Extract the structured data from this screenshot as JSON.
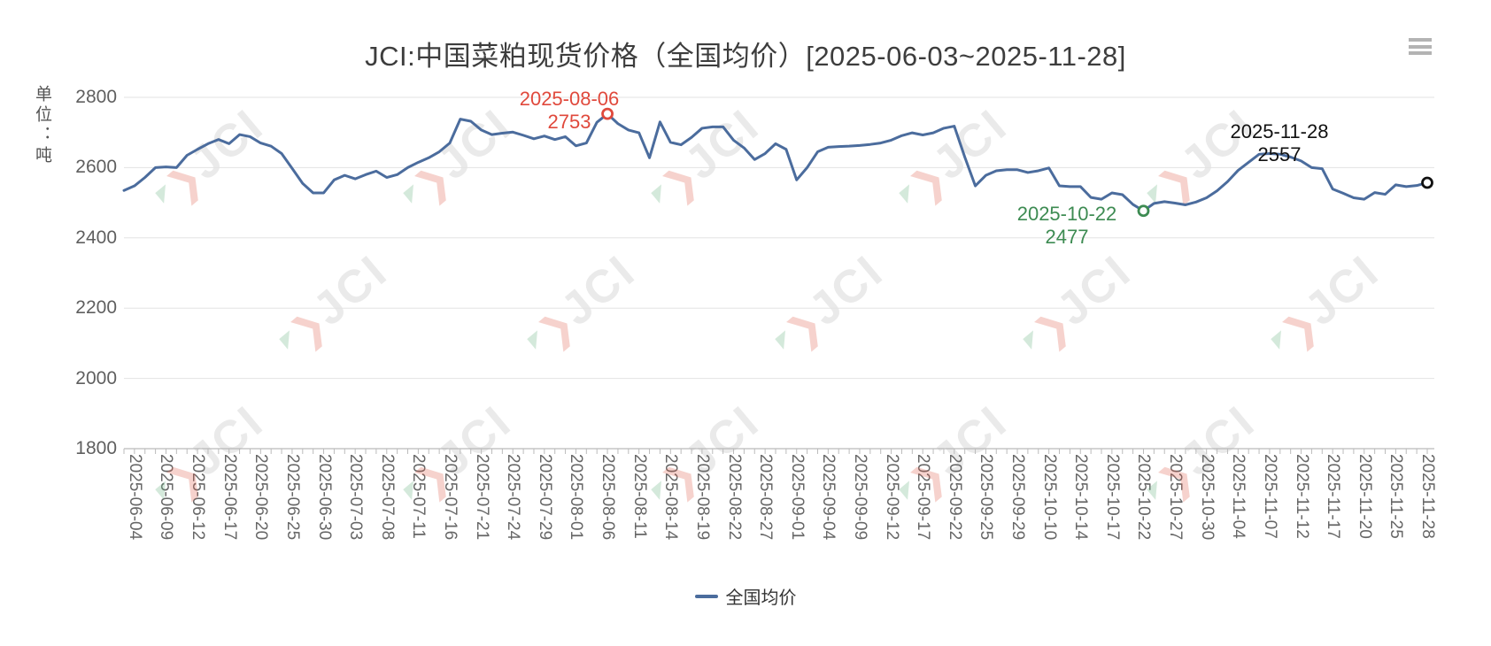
{
  "header": {
    "title": "JCI:中国菜粕现货价格（全国均价）[2025-06-03~2025-11-28]"
  },
  "icons": {
    "menu": "hamburger"
  },
  "y_axis": {
    "unit_label": "单位：吨"
  },
  "legend": {
    "items": [
      {
        "label": "全国均价",
        "color": "#4b6c9d"
      }
    ],
    "position": "bottom"
  },
  "colors": {
    "line": "#4b6c9d",
    "max": "#e0493c",
    "min": "#3d8b52",
    "last": "#111111",
    "grid": "#e3e3e3",
    "axis": "#aaaaaa"
  },
  "watermark": {
    "chevron": "❯",
    "accent": "◤",
    "text": "JCI"
  },
  "chart_data": {
    "type": "line",
    "title": "JCI:中国菜粕现货价格（全国均价）[2025-06-03~2025-11-28]",
    "ylabel": "单位：吨",
    "ylim": [
      1800,
      2800
    ],
    "y_ticks": [
      2800,
      2600,
      2400,
      2200,
      2000,
      1800
    ],
    "grid": true,
    "legend_position": "bottom",
    "x_label_interval": 3,
    "x": [
      "2025-06-03",
      "2025-06-04",
      "2025-06-05",
      "2025-06-06",
      "2025-06-09",
      "2025-06-10",
      "2025-06-11",
      "2025-06-12",
      "2025-06-13",
      "2025-06-16",
      "2025-06-17",
      "2025-06-18",
      "2025-06-19",
      "2025-06-20",
      "2025-06-23",
      "2025-06-24",
      "2025-06-25",
      "2025-06-26",
      "2025-06-27",
      "2025-06-30",
      "2025-07-01",
      "2025-07-02",
      "2025-07-03",
      "2025-07-04",
      "2025-07-07",
      "2025-07-08",
      "2025-07-09",
      "2025-07-10",
      "2025-07-11",
      "2025-07-14",
      "2025-07-15",
      "2025-07-16",
      "2025-07-17",
      "2025-07-18",
      "2025-07-21",
      "2025-07-22",
      "2025-07-23",
      "2025-07-24",
      "2025-07-25",
      "2025-07-28",
      "2025-07-29",
      "2025-07-30",
      "2025-07-31",
      "2025-08-01",
      "2025-08-04",
      "2025-08-05",
      "2025-08-06",
      "2025-08-07",
      "2025-08-08",
      "2025-08-11",
      "2025-08-12",
      "2025-08-13",
      "2025-08-14",
      "2025-08-15",
      "2025-08-18",
      "2025-08-19",
      "2025-08-20",
      "2025-08-21",
      "2025-08-22",
      "2025-08-25",
      "2025-08-26",
      "2025-08-27",
      "2025-08-28",
      "2025-08-29",
      "2025-09-01",
      "2025-09-02",
      "2025-09-03",
      "2025-09-04",
      "2025-09-05",
      "2025-09-08",
      "2025-09-09",
      "2025-09-10",
      "2025-09-11",
      "2025-09-12",
      "2025-09-15",
      "2025-09-16",
      "2025-09-17",
      "2025-09-18",
      "2025-09-19",
      "2025-09-22",
      "2025-09-23",
      "2025-09-24",
      "2025-09-25",
      "2025-09-26",
      "2025-09-28",
      "2025-09-29",
      "2025-09-30",
      "2025-10-09",
      "2025-10-10",
      "2025-10-11",
      "2025-10-13",
      "2025-10-14",
      "2025-10-15",
      "2025-10-16",
      "2025-10-17",
      "2025-10-20",
      "2025-10-21",
      "2025-10-22",
      "2025-10-23",
      "2025-10-24",
      "2025-10-27",
      "2025-10-28",
      "2025-10-29",
      "2025-10-30",
      "2025-10-31",
      "2025-11-03",
      "2025-11-04",
      "2025-11-05",
      "2025-11-06",
      "2025-11-07",
      "2025-11-10",
      "2025-11-11",
      "2025-11-12",
      "2025-11-13",
      "2025-11-14",
      "2025-11-17",
      "2025-11-18",
      "2025-11-19",
      "2025-11-20",
      "2025-11-21",
      "2025-11-24",
      "2025-11-25",
      "2025-11-26",
      "2025-11-27",
      "2025-11-28"
    ],
    "series": [
      {
        "name": "全国均价",
        "color": "#4b6c9d",
        "values": [
          2535,
          2548,
          2572,
          2600,
          2602,
          2600,
          2635,
          2652,
          2668,
          2680,
          2668,
          2694,
          2688,
          2670,
          2661,
          2640,
          2598,
          2555,
          2528,
          2528,
          2565,
          2578,
          2568,
          2580,
          2590,
          2572,
          2580,
          2600,
          2615,
          2628,
          2645,
          2670,
          2738,
          2732,
          2707,
          2694,
          2698,
          2701,
          2692,
          2682,
          2690,
          2680,
          2688,
          2662,
          2670,
          2729,
          2753,
          2725,
          2707,
          2699,
          2628,
          2730,
          2672,
          2665,
          2686,
          2712,
          2716,
          2716,
          2678,
          2656,
          2623,
          2640,
          2668,
          2652,
          2565,
          2600,
          2645,
          2658,
          2660,
          2661,
          2663,
          2666,
          2670,
          2678,
          2691,
          2699,
          2693,
          2699,
          2712,
          2718,
          2630,
          2548,
          2578,
          2591,
          2594,
          2594,
          2586,
          2591,
          2599,
          2548,
          2546,
          2546,
          2515,
          2510,
          2528,
          2523,
          2495,
          2477,
          2498,
          2503,
          2499,
          2494,
          2502,
          2514,
          2534,
          2560,
          2592,
          2615,
          2638,
          2640,
          2638,
          2630,
          2619,
          2600,
          2597,
          2539,
          2527,
          2514,
          2510,
          2529,
          2524,
          2551,
          2546,
          2549,
          2557
        ]
      }
    ],
    "annotations": {
      "max": {
        "date": "2025-08-06",
        "value": 2753
      },
      "min": {
        "date": "2025-10-22",
        "value": 2477
      },
      "last": {
        "date": "2025-11-28",
        "value": 2557
      }
    }
  }
}
